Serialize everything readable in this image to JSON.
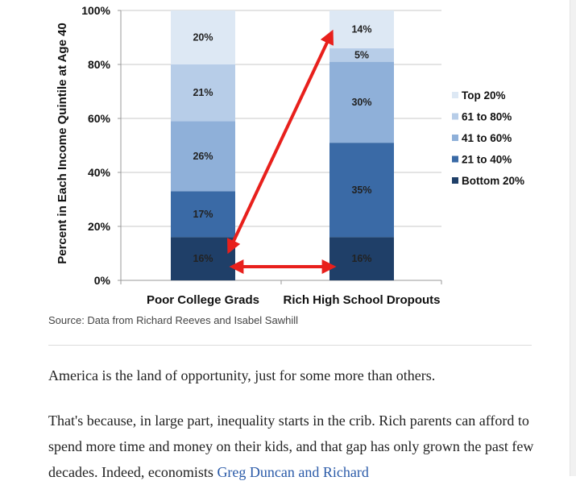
{
  "chart_data": {
    "type": "bar",
    "stacked": true,
    "categories": [
      "Poor College Grads",
      "Rich High School Dropouts"
    ],
    "series": [
      {
        "name": "Bottom 20%",
        "values": [
          16,
          16
        ],
        "labels": [
          "16%",
          "16%"
        ],
        "color": "#1f3f68"
      },
      {
        "name": "21 to 40%",
        "values": [
          17,
          35
        ],
        "labels": [
          "17%",
          "35%"
        ],
        "color": "#3a6aa6"
      },
      {
        "name": "41 to 60%",
        "values": [
          26,
          30
        ],
        "labels": [
          "26%",
          "30%"
        ],
        "color": "#8fb0d9"
      },
      {
        "name": "61 to 80%",
        "values": [
          21,
          5
        ],
        "labels": [
          "21%",
          "5%"
        ],
        "color": "#b7cde8"
      },
      {
        "name": "Top 20%",
        "values": [
          20,
          14
        ],
        "labels": [
          "20%",
          "14%"
        ],
        "color": "#dde8f4"
      }
    ],
    "ylabel": "Percent in Each Income Quintile at Age 40",
    "yticks": [
      "0%",
      "20%",
      "40%",
      "60%",
      "80%",
      "100%"
    ],
    "ylim": [
      0,
      100
    ],
    "legend_position": "right",
    "legend_order": [
      "Top 20%",
      "61 to 80%",
      "41 to 60%",
      "21 to 40%",
      "Bottom 20%"
    ],
    "annotations": [
      {
        "type": "double-arrow",
        "color": "#e8201c",
        "from": "Poor College Grads bottom 20%",
        "to": "Rich High School Dropouts bottom 20%"
      },
      {
        "type": "arrow",
        "color": "#e8201c",
        "from": "Poor College Grads bottom 20%",
        "to": "Rich High School Dropouts top 20%"
      }
    ]
  },
  "source": "Source: Data from Richard Reeves and Isabel Sawhill",
  "paragraphs": {
    "p1": "America is the land of opportunity, just for some more than others.",
    "p2_text": "That's because, in large part, inequality starts in the crib. Rich parents can afford to spend more time and money on their kids, and that gap has only grown the past few decades. Indeed, economists ",
    "p2_link": "Greg Duncan and Richard"
  }
}
